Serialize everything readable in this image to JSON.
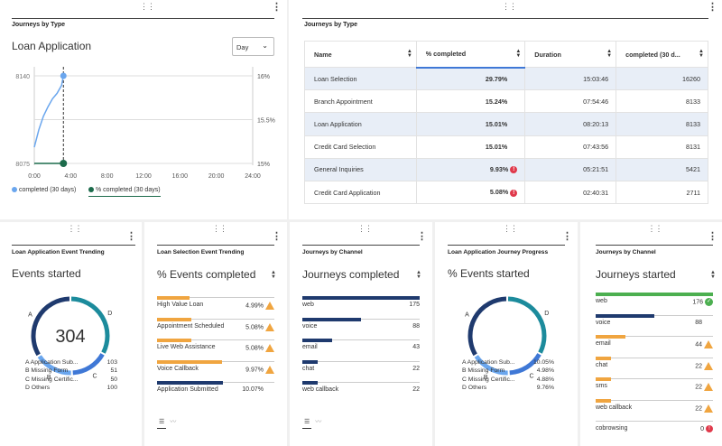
{
  "colors": {
    "navy": "#1f3a6e",
    "teal": "#1c8b9c",
    "blue": "#3f78d6",
    "light_blue": "#6aa6ee",
    "orange": "#f0a540",
    "green": "#4caf50",
    "red": "#e0394b"
  },
  "panel1": {
    "title": "Journeys by Type",
    "chart_title": "Loan Application",
    "dropdown_value": "Day",
    "chart_data": {
      "type": "line",
      "x_ticks": [
        "0:00",
        "4:00",
        "8:00",
        "12:00",
        "16:00",
        "20:00",
        "24:00"
      ],
      "y_left_ticks": [
        "8140",
        "8075"
      ],
      "y_right_ticks": [
        "16%",
        "15.5%",
        "15%"
      ],
      "series": [
        {
          "name": "completed (30 days)",
          "x": [
            0.0,
            0.5,
            1.0,
            1.5,
            2.0,
            2.5,
            3.0,
            3.2
          ],
          "values": [
            8087,
            8100,
            8110,
            8117,
            8123,
            8127,
            8133,
            8140
          ]
        },
        {
          "name": "% completed (30 days)",
          "x": [
            3.2
          ],
          "values": [
            15.0
          ]
        }
      ]
    }
  },
  "panel2": {
    "title": "Journeys by Type",
    "columns": [
      "Name",
      "% completed",
      "Duration",
      "completed (30 d..."
    ],
    "rows": [
      {
        "name": "Loan Selection",
        "pct": "29.79%",
        "dur": "15:03:46",
        "cnt": "16260",
        "warn": false
      },
      {
        "name": "Branch Appointment",
        "pct": "15.24%",
        "dur": "07:54:46",
        "cnt": "8133",
        "warn": false
      },
      {
        "name": "Loan Application",
        "pct": "15.01%",
        "dur": "08:20:13",
        "cnt": "8133",
        "warn": false
      },
      {
        "name": "Credit Card Selection",
        "pct": "15.01%",
        "dur": "07:43:56",
        "cnt": "8131",
        "warn": false
      },
      {
        "name": "General Inquiries",
        "pct": "9.93%",
        "dur": "05:21:51",
        "cnt": "5421",
        "warn": true
      },
      {
        "name": "Credit Card Application",
        "pct": "5.08%",
        "dur": "02:40:31",
        "cnt": "2711",
        "warn": true
      }
    ]
  },
  "panel3": {
    "title": "Loan Application Event Trending",
    "metric": "Events started",
    "total": "304",
    "segment_letters": [
      "A",
      "B",
      "C",
      "D"
    ],
    "legend": [
      {
        "label": "A Application Sub...",
        "value": "103"
      },
      {
        "label": "B Missing Form",
        "value": "51"
      },
      {
        "label": "C Missing Certific...",
        "value": "50"
      },
      {
        "label": "D Others",
        "value": "100"
      }
    ],
    "chart_data": {
      "type": "pie",
      "categories": [
        "A",
        "B",
        "C",
        "D"
      ],
      "values": [
        103,
        51,
        50,
        100
      ]
    }
  },
  "panel4": {
    "title": "Loan Selection Event Trending",
    "metric": "% Events completed",
    "items": [
      {
        "label": "High Value Loan",
        "value": "4.99%",
        "frac": 0.28,
        "color": "#f0a540",
        "warn": true
      },
      {
        "label": "Appointment Scheduled",
        "value": "5.08%",
        "frac": 0.29,
        "color": "#f0a540",
        "warn": true
      },
      {
        "label": "Live Web Assistance",
        "value": "5.08%",
        "frac": 0.29,
        "color": "#f0a540",
        "warn": true
      },
      {
        "label": "Voice Callback",
        "value": "9.97%",
        "frac": 0.55,
        "color": "#f0a540",
        "warn": true
      },
      {
        "label": "Application Submitted",
        "value": "10.07%",
        "frac": 0.56,
        "color": "#1f3a6e",
        "warn": false
      }
    ]
  },
  "panel5": {
    "title": "Journeys by Channel",
    "metric": "Journeys completed",
    "items": [
      {
        "label": "web",
        "value": "175",
        "frac": 1.0,
        "color": "#1f3a6e"
      },
      {
        "label": "voice",
        "value": "88",
        "frac": 0.5,
        "color": "#1f3a6e"
      },
      {
        "label": "email",
        "value": "43",
        "frac": 0.25,
        "color": "#1f3a6e"
      },
      {
        "label": "chat",
        "value": "22",
        "frac": 0.13,
        "color": "#1f3a6e"
      },
      {
        "label": "web callback",
        "value": "22",
        "frac": 0.13,
        "color": "#1f3a6e"
      }
    ]
  },
  "panel6": {
    "title": "Loan Application Journey Progress",
    "metric": "% Events started",
    "segment_letters": [
      "A",
      "B",
      "C",
      "D"
    ],
    "legend": [
      {
        "label": "A Application Sub...",
        "value": "10.05%"
      },
      {
        "label": "B Missing Form",
        "value": "4.98%"
      },
      {
        "label": "C Missing Certific...",
        "value": "4.88%"
      },
      {
        "label": "D Others",
        "value": "9.76%"
      }
    ],
    "chart_data": {
      "type": "pie",
      "categories": [
        "A",
        "B",
        "C",
        "D"
      ],
      "values": [
        10.05,
        4.98,
        4.88,
        9.76
      ]
    }
  },
  "panel7": {
    "title": "Journeys by Channel",
    "metric": "Journeys started",
    "items": [
      {
        "label": "web",
        "value": "176",
        "frac": 1.0,
        "color": "#4caf50",
        "icon": "ok"
      },
      {
        "label": "voice",
        "value": "88",
        "frac": 0.5,
        "color": "#1f3a6e",
        "icon": ""
      },
      {
        "label": "email",
        "value": "44",
        "frac": 0.25,
        "color": "#f0a540",
        "icon": "warn"
      },
      {
        "label": "chat",
        "value": "22",
        "frac": 0.13,
        "color": "#f0a540",
        "icon": "warn"
      },
      {
        "label": "sms",
        "value": "22",
        "frac": 0.13,
        "color": "#f0a540",
        "icon": "warn"
      },
      {
        "label": "web callback",
        "value": "22",
        "frac": 0.13,
        "color": "#f0a540",
        "icon": "warn"
      },
      {
        "label": "cobrowsing",
        "value": "0",
        "frac": 0.0,
        "color": "#e0394b",
        "icon": "err"
      }
    ]
  }
}
